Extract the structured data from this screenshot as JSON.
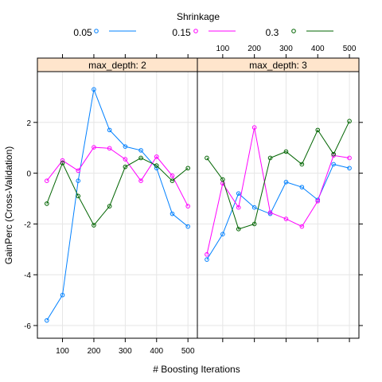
{
  "chart_data": {
    "type": "line",
    "legend": {
      "title": "Shrinkage",
      "placement": "top",
      "entries": [
        {
          "label": "0.05",
          "color": "#0080ff"
        },
        {
          "label": "0.15",
          "color": "#ff00ff"
        },
        {
          "label": "0.3",
          "color": "#006400"
        }
      ]
    },
    "xlabel": "# Boosting Iterations",
    "ylabel": "GainPerc (Cross-Validation)",
    "xlim": [
      20,
      530
    ],
    "ylim": [
      -6.5,
      4
    ],
    "x_ticks": [
      100,
      200,
      300,
      400,
      500
    ],
    "y_ticks": [
      -6,
      -4,
      -2,
      0,
      2
    ],
    "grid": true,
    "x": [
      50,
      100,
      150,
      200,
      250,
      300,
      350,
      400,
      450,
      500
    ],
    "panels": [
      {
        "title": "max_depth: 2",
        "series": [
          {
            "name": "0.05",
            "color": "#0080ff",
            "values": [
              -5.8,
              -4.8,
              -0.3,
              3.3,
              1.7,
              1.05,
              0.9,
              0.2,
              -1.6,
              -2.1
            ]
          },
          {
            "name": "0.15",
            "color": "#ff00ff",
            "values": [
              -0.3,
              0.5,
              0.1,
              1.02,
              0.98,
              0.55,
              -0.3,
              0.65,
              -0.1,
              -1.3
            ]
          },
          {
            "name": "0.3",
            "color": "#006400",
            "values": [
              -1.2,
              0.4,
              -0.9,
              -2.05,
              -1.3,
              0.25,
              0.6,
              0.3,
              -0.3,
              0.2
            ]
          }
        ]
      },
      {
        "title": "max_depth: 3",
        "series": [
          {
            "name": "0.05",
            "color": "#0080ff",
            "values": [
              -3.4,
              -2.4,
              -0.8,
              -1.35,
              -1.6,
              -0.35,
              -0.55,
              -1.05,
              0.35,
              0.2
            ]
          },
          {
            "name": "0.15",
            "color": "#ff00ff",
            "values": [
              -3.2,
              -0.4,
              -1.35,
              1.8,
              -1.55,
              -1.8,
              -2.1,
              -1.1,
              0.7,
              0.6
            ]
          },
          {
            "name": "0.3",
            "color": "#006400",
            "values": [
              0.6,
              -0.25,
              -2.2,
              -2.0,
              0.6,
              0.85,
              0.35,
              1.7,
              0.75,
              2.05
            ]
          }
        ]
      }
    ]
  }
}
